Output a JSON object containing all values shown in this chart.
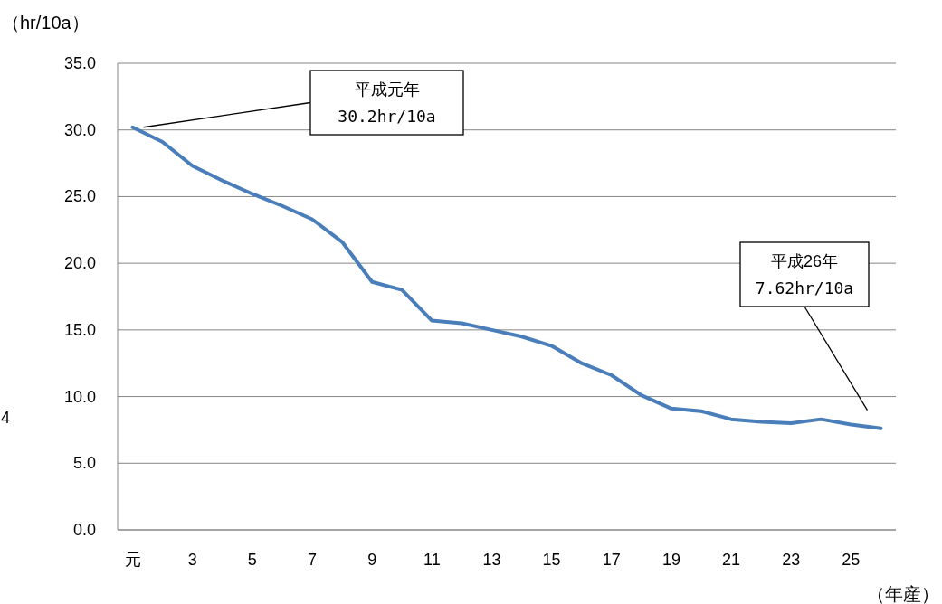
{
  "chart_data": {
    "type": "line",
    "ylabel": "（hr/10a）",
    "xlabel": "（年産）",
    "categories": [
      "元",
      null,
      "3",
      null,
      "5",
      null,
      "7",
      null,
      "9",
      null,
      "11",
      null,
      "13",
      null,
      "15",
      null,
      "17",
      null,
      "19",
      null,
      "21",
      null,
      "23",
      null,
      "25",
      null
    ],
    "series": [
      {
        "color": "#4a7ebb",
        "values": [
          30.2,
          29.1,
          27.3,
          26.2,
          25.2,
          24.3,
          23.3,
          21.6,
          18.6,
          18.0,
          15.7,
          15.5,
          15.0,
          14.5,
          13.8,
          12.5,
          11.6,
          10.1,
          9.1,
          8.9,
          8.3,
          8.1,
          8.0,
          8.3,
          7.9,
          7.62
        ]
      }
    ],
    "ylim": [
      0,
      35
    ],
    "yticks": [
      {
        "value": 0,
        "label": "0.0"
      },
      {
        "value": 5,
        "label": "5.0"
      },
      {
        "value": 10,
        "label": "10.0"
      },
      {
        "value": 15,
        "label": "15.0"
      },
      {
        "value": 20,
        "label": "20.0"
      },
      {
        "value": 25,
        "label": "25.0"
      },
      {
        "value": 30,
        "label": "30.0"
      },
      {
        "value": 35,
        "label": "35.0"
      }
    ],
    "grid": "y",
    "marker": "none",
    "line_style": "solid",
    "annotations": [
      "平成元年\n30.2hr/10a",
      "平成26年\n7.62hr/10a",
      "4"
    ]
  }
}
